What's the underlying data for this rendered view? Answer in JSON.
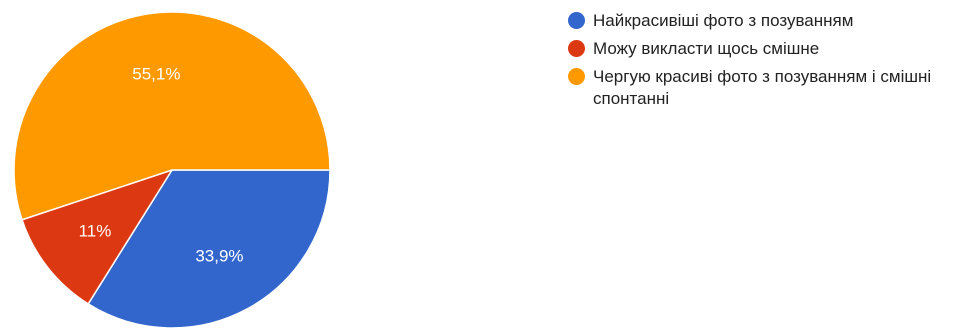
{
  "chart_data": {
    "type": "pie",
    "title": "",
    "slices": [
      {
        "label": "Найкрасивіші фото з позуванням",
        "value": 33.9,
        "display": "33,9%",
        "color": "#3366cc"
      },
      {
        "label": "Можу викласти щось смішне",
        "value": 11.0,
        "display": "11%",
        "color": "#dc3912"
      },
      {
        "label": "Чергую красиві фото з позуванням і смішні спонтанні",
        "value": 55.1,
        "display": "55,1%",
        "color": "#ff9900"
      }
    ],
    "legend_position": "right",
    "start_angle": "3 o'clock",
    "direction": "clockwise"
  }
}
